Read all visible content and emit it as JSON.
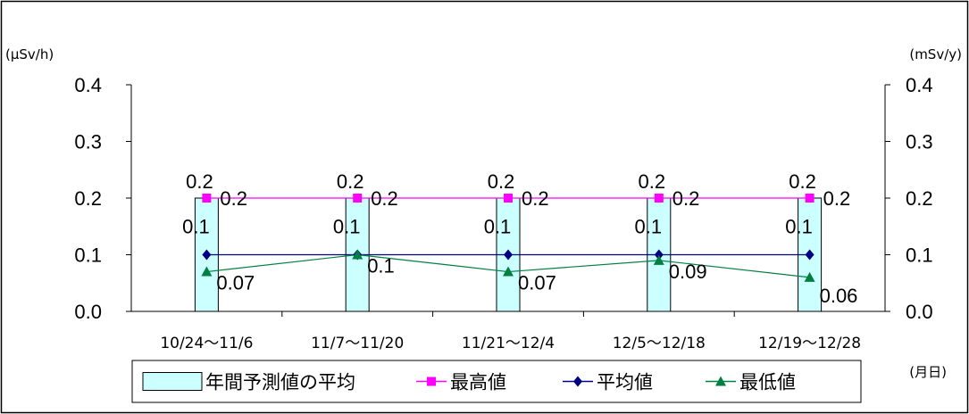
{
  "chart_data": {
    "type": "bar",
    "left_unit": "(μSv/h)",
    "right_unit": "(mSv/y)",
    "x_unit": "(月日)",
    "ylim": [
      0,
      0.4
    ],
    "y_ticks": [
      "0.0",
      "0.1",
      "0.2",
      "0.3",
      "0.4"
    ],
    "y2_ticks": [
      "0.0",
      "0.1",
      "0.2",
      "0.3",
      "0.4"
    ],
    "categories": [
      "10/24〜11/6",
      "11/7〜11/20",
      "11/21〜12/4",
      "12/5〜12/18",
      "12/19〜12/28"
    ],
    "series": [
      {
        "name": "年間予測値の平均",
        "kind": "bar",
        "color": "#ccffff",
        "values": [
          0.2,
          0.2,
          0.2,
          0.2,
          0.2
        ],
        "labels": [
          "0.2",
          "0.2",
          "0.2",
          "0.2",
          "0.2"
        ]
      },
      {
        "name": "最高値",
        "kind": "line",
        "marker": "square",
        "color": "#ff00ff",
        "values": [
          0.2,
          0.2,
          0.2,
          0.2,
          0.2
        ],
        "labels": [
          "0.2",
          "0.2",
          "0.2",
          "0.2",
          "0.2"
        ]
      },
      {
        "name": "平均値",
        "kind": "line",
        "marker": "diamond",
        "color": "#000080",
        "values": [
          0.1,
          0.1,
          0.1,
          0.1,
          0.1
        ],
        "labels": [
          "0.1",
          "0.1",
          "0.1",
          "0.1",
          "0.1"
        ]
      },
      {
        "name": "最低値",
        "kind": "line",
        "marker": "triangle",
        "color": "#008040",
        "values": [
          0.07,
          0.1,
          0.07,
          0.09,
          0.06
        ],
        "labels": [
          "0.07",
          "0.1",
          "0.07",
          "0.09",
          "0.06"
        ]
      }
    ],
    "legend_position": "bottom",
    "grid": false
  }
}
